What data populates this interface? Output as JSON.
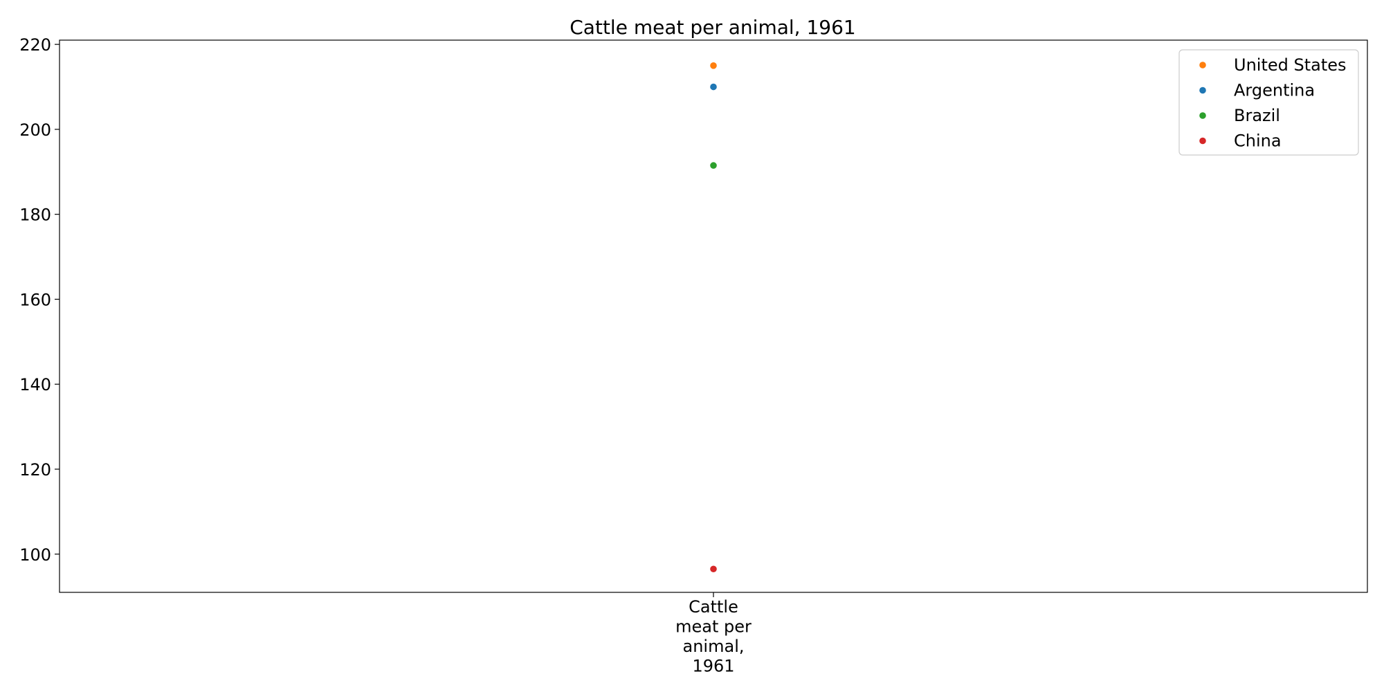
{
  "chart_data": {
    "type": "scatter",
    "title": "Cattle meat per animal, 1961",
    "xlabel": "",
    "ylabel": "",
    "categories": [
      "Cattle meat per animal, 1961"
    ],
    "category_label_lines": [
      "Cattle",
      "meat per",
      "animal,",
      "1961"
    ],
    "ylim": [
      91,
      221
    ],
    "yticks": [
      100,
      120,
      140,
      160,
      180,
      200,
      220
    ],
    "grid": false,
    "legend_position": "top-right",
    "series": [
      {
        "name": "United States",
        "color": "#ff7f0e",
        "values": [
          215
        ]
      },
      {
        "name": "Argentina",
        "color": "#1f77b4",
        "values": [
          210
        ]
      },
      {
        "name": "Brazil",
        "color": "#2ca02c",
        "values": [
          191.5
        ]
      },
      {
        "name": "China",
        "color": "#d62728",
        "values": [
          96.5
        ]
      }
    ]
  }
}
